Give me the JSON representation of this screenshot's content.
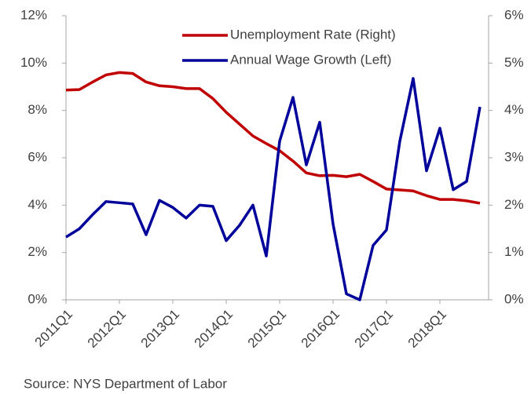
{
  "chart_data": {
    "type": "line",
    "source": "Source: NYS Department of Labor",
    "categories": [
      "2011Q1",
      null,
      null,
      null,
      "2012Q1",
      null,
      null,
      null,
      "2013Q1",
      null,
      null,
      null,
      "2014Q1",
      null,
      null,
      null,
      "2015Q1",
      null,
      null,
      null,
      "2016Q1",
      null,
      null,
      null,
      "2017Q1",
      null,
      null,
      null,
      "2018Q1",
      null,
      null,
      null
    ],
    "series": [
      {
        "name": "Unemployment Rate (Right)",
        "color": "#c00000",
        "axis": "y2",
        "values": [
          4.43,
          4.44,
          4.6,
          4.75,
          4.8,
          4.78,
          4.6,
          4.52,
          4.5,
          4.46,
          4.46,
          4.25,
          3.96,
          3.71,
          3.46,
          3.3,
          3.15,
          2.93,
          2.68,
          2.62,
          2.63,
          2.6,
          2.65,
          2.5,
          2.34,
          2.32,
          2.3,
          2.2,
          2.12,
          2.12,
          2.09,
          2.04
        ]
      },
      {
        "name": "Annual Wage Growth (Left)",
        "color": "#00009a",
        "values": [
          2.65,
          3.0,
          3.6,
          4.15,
          4.1,
          4.05,
          2.75,
          4.2,
          3.9,
          3.45,
          4.0,
          3.95,
          2.5,
          3.15,
          4.0,
          1.85,
          6.7,
          8.55,
          5.7,
          7.5,
          3.2,
          0.25,
          0,
          2.3,
          2.95,
          6.7,
          9.35,
          5.45,
          7.25,
          4.65,
          5.0,
          8.15
        ]
      }
    ],
    "ylim": [
      0,
      12
    ],
    "yticks": [
      {
        "value": 0,
        "label": "0%"
      },
      {
        "value": 2,
        "label": "2%"
      },
      {
        "value": 4,
        "label": "4%"
      },
      {
        "value": 6,
        "label": "6%"
      },
      {
        "value": 8,
        "label": "8%"
      },
      {
        "value": 10,
        "label": "10%"
      },
      {
        "value": 12,
        "label": "12%"
      }
    ],
    "y2lim": [
      0,
      6
    ],
    "y2ticks": [
      {
        "value": 0,
        "label": "0%"
      },
      {
        "value": 1,
        "label": "1%"
      },
      {
        "value": 2,
        "label": "2%"
      },
      {
        "value": 3,
        "label": "3%"
      },
      {
        "value": 4,
        "label": "4%"
      },
      {
        "value": 5,
        "label": "5%"
      },
      {
        "value": 6,
        "label": "6%"
      }
    ],
    "legend": "upper-right",
    "grid": false
  }
}
